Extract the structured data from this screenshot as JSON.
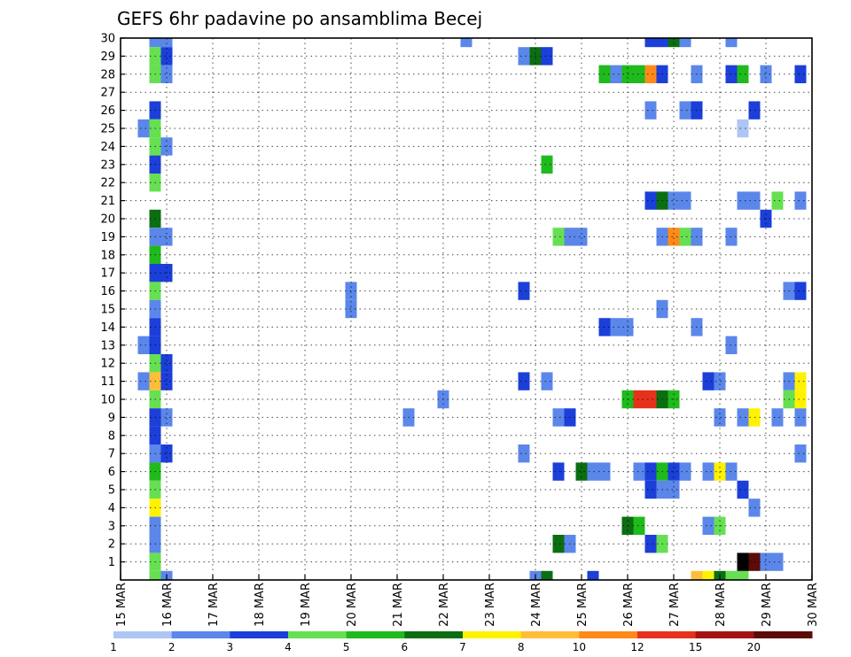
{
  "chart_data": {
    "type": "heatmap",
    "title": "GEFS 6hr padavine po ansamblima Becej",
    "xlabel": "",
    "ylabel": "",
    "x_ticks": [
      "15 MAR",
      "16 MAR",
      "17 MAR",
      "18 MAR",
      "19 MAR",
      "20 MAR",
      "21 MAR",
      "22 MAR",
      "23 MAR",
      "24 MAR",
      "25 MAR",
      "26 MAR",
      "27 MAR",
      "28 MAR",
      "29 MAR",
      "30 MAR"
    ],
    "y_ticks": [
      "1",
      "2",
      "3",
      "4",
      "5",
      "6",
      "7",
      "8",
      "9",
      "10",
      "11",
      "12",
      "13",
      "14",
      "15",
      "16",
      "17",
      "18",
      "19",
      "20",
      "21",
      "22",
      "23",
      "24",
      "25",
      "26",
      "27",
      "28",
      "29",
      "30"
    ],
    "grid": true,
    "colorbar": {
      "levels": [
        "1",
        "2",
        "3",
        "4",
        "5",
        "6",
        "7",
        "8",
        "10",
        "12",
        "15",
        "20"
      ],
      "colors": [
        "#aec6f5",
        "#5b87ea",
        "#1b3fd8",
        "#66e052",
        "#1fba1c",
        "#0b6e12",
        "#fff200",
        "#ffbe3a",
        "#ff8a1a",
        "#e6311d",
        "#a41412",
        "#5c0b08"
      ]
    },
    "cells": [
      {
        "x": "15 MAR 18h",
        "m": 30,
        "c": 1
      },
      {
        "x": "16 MAR 00h",
        "m": 30,
        "c": 1
      },
      {
        "x": "15 MAR 18h",
        "m": 29,
        "c": 3
      },
      {
        "x": "16 MAR 00h",
        "m": 29,
        "c": 2
      },
      {
        "x": "15 MAR 18h",
        "m": 28,
        "c": 3
      },
      {
        "x": "16 MAR 00h",
        "m": 28,
        "c": 1
      },
      {
        "x": "15 MAR 18h",
        "m": 26,
        "c": 2
      },
      {
        "x": "15 MAR 12h",
        "m": 25,
        "c": 1
      },
      {
        "x": "15 MAR 18h",
        "m": 25,
        "c": 3
      },
      {
        "x": "15 MAR 18h",
        "m": 24,
        "c": 3
      },
      {
        "x": "16 MAR 00h",
        "m": 24,
        "c": 1
      },
      {
        "x": "15 MAR 18h",
        "m": 23,
        "c": 2
      },
      {
        "x": "15 MAR 18h",
        "m": 22,
        "c": 3
      },
      {
        "x": "15 MAR 18h",
        "m": 20,
        "c": 5
      },
      {
        "x": "15 MAR 18h",
        "m": 19,
        "c": 1
      },
      {
        "x": "16 MAR 00h",
        "m": 19,
        "c": 1
      },
      {
        "x": "15 MAR 18h",
        "m": 18,
        "c": 4
      },
      {
        "x": "15 MAR 18h",
        "m": 17,
        "c": 2
      },
      {
        "x": "16 MAR 00h",
        "m": 17,
        "c": 2
      },
      {
        "x": "15 MAR 18h",
        "m": 16,
        "c": 3
      },
      {
        "x": "15 MAR 18h",
        "m": 15,
        "c": 1
      },
      {
        "x": "15 MAR 18h",
        "m": 14,
        "c": 2
      },
      {
        "x": "15 MAR 12h",
        "m": 13,
        "c": 1
      },
      {
        "x": "15 MAR 18h",
        "m": 13,
        "c": 2
      },
      {
        "x": "15 MAR 18h",
        "m": 12,
        "c": 3
      },
      {
        "x": "16 MAR 00h",
        "m": 12,
        "c": 2
      },
      {
        "x": "15 MAR 12h",
        "m": 11,
        "c": 1
      },
      {
        "x": "15 MAR 18h",
        "m": 11,
        "c": 7
      },
      {
        "x": "16 MAR 00h",
        "m": 11,
        "c": 2
      },
      {
        "x": "15 MAR 18h",
        "m": 10,
        "c": 3
      },
      {
        "x": "15 MAR 18h",
        "m": 9,
        "c": 2
      },
      {
        "x": "16 MAR 00h",
        "m": 9,
        "c": 1
      },
      {
        "x": "15 MAR 18h",
        "m": 8,
        "c": 2
      },
      {
        "x": "15 MAR 18h",
        "m": 7,
        "c": 1
      },
      {
        "x": "16 MAR 00h",
        "m": 7,
        "c": 2
      },
      {
        "x": "15 MAR 18h",
        "m": 6,
        "c": 4
      },
      {
        "x": "15 MAR 18h",
        "m": 5,
        "c": 3
      },
      {
        "x": "15 MAR 18h",
        "m": 4,
        "c": 6
      },
      {
        "x": "15 MAR 18h",
        "m": 3,
        "c": 1
      },
      {
        "x": "15 MAR 18h",
        "m": 2,
        "c": 1
      },
      {
        "x": "15 MAR 18h",
        "m": 1,
        "c": 3
      },
      {
        "x": "15 MAR 18h",
        "m": 0,
        "c": 3
      },
      {
        "x": "16 MAR 00h",
        "m": 0,
        "c": 1
      },
      {
        "x": "20 MAR 00h",
        "m": 16,
        "c": 1
      },
      {
        "x": "20 MAR 00h",
        "m": 15,
        "c": 1
      },
      {
        "x": "21 MAR 06h",
        "m": 9,
        "c": 1
      },
      {
        "x": "22 MAR 00h",
        "m": 10,
        "c": 1
      },
      {
        "x": "22 MAR 12h",
        "m": 30,
        "c": 1
      },
      {
        "x": "23 MAR 18h",
        "m": 29,
        "c": 1
      },
      {
        "x": "24 MAR 00h",
        "m": 29,
        "c": 5
      },
      {
        "x": "24 MAR 06h",
        "m": 29,
        "c": 2
      },
      {
        "x": "23 MAR 18h",
        "m": 16,
        "c": 2
      },
      {
        "x": "23 MAR 18h",
        "m": 11,
        "c": 2
      },
      {
        "x": "23 MAR 18h",
        "m": 7,
        "c": 1
      },
      {
        "x": "24 MAR 00h",
        "m": 0,
        "c": 1
      },
      {
        "x": "24 MAR 06h",
        "m": 0,
        "c": 5
      },
      {
        "x": "24 MAR 06h",
        "m": 23,
        "c": 4
      },
      {
        "x": "24 MAR 06h",
        "m": 11,
        "c": 1
      },
      {
        "x": "24 MAR 12h",
        "m": 19,
        "c": 3
      },
      {
        "x": "24 MAR 18h",
        "m": 19,
        "c": 1
      },
      {
        "x": "25 MAR 00h",
        "m": 19,
        "c": 1
      },
      {
        "x": "24 MAR 12h",
        "m": 9,
        "c": 1
      },
      {
        "x": "24 MAR 18h",
        "m": 9,
        "c": 2
      },
      {
        "x": "24 MAR 12h",
        "m": 6,
        "c": 2
      },
      {
        "x": "24 MAR 12h",
        "m": 2,
        "c": 5
      },
      {
        "x": "24 MAR 18h",
        "m": 2,
        "c": 1
      },
      {
        "x": "25 MAR 00h",
        "m": 6,
        "c": 5
      },
      {
        "x": "25 MAR 06h",
        "m": 6,
        "c": 1
      },
      {
        "x": "25 MAR 12h",
        "m": 6,
        "c": 1
      },
      {
        "x": "25 MAR 06h",
        "m": 0,
        "c": 2
      },
      {
        "x": "25 MAR 12h",
        "m": 28,
        "c": 4
      },
      {
        "x": "25 MAR 18h",
        "m": 28,
        "c": 1
      },
      {
        "x": "26 MAR 00h",
        "m": 28,
        "c": 4
      },
      {
        "x": "26 MAR 06h",
        "m": 28,
        "c": 4
      },
      {
        "x": "26 MAR 12h",
        "m": 28,
        "c": 8
      },
      {
        "x": "26 MAR 18h",
        "m": 28,
        "c": 2
      },
      {
        "x": "25 MAR 12h",
        "m": 14,
        "c": 2
      },
      {
        "x": "25 MAR 18h",
        "m": 14,
        "c": 1
      },
      {
        "x": "26 MAR 00h",
        "m": 14,
        "c": 1
      },
      {
        "x": "26 MAR 00h",
        "m": 10,
        "c": 4
      },
      {
        "x": "26 MAR 06h",
        "m": 10,
        "c": 9
      },
      {
        "x": "26 MAR 12h",
        "m": 10,
        "c": 9
      },
      {
        "x": "26 MAR 18h",
        "m": 10,
        "c": 5
      },
      {
        "x": "27 MAR 00h",
        "m": 10,
        "c": 4
      },
      {
        "x": "26 MAR 00h",
        "m": 3,
        "c": 5
      },
      {
        "x": "26 MAR 06h",
        "m": 3,
        "c": 4
      },
      {
        "x": "26 MAR 06h",
        "m": 6,
        "c": 1
      },
      {
        "x": "26 MAR 12h",
        "m": 6,
        "c": 2
      },
      {
        "x": "26 MAR 18h",
        "m": 6,
        "c": 4
      },
      {
        "x": "27 MAR 00h",
        "m": 6,
        "c": 2
      },
      {
        "x": "27 MAR 06h",
        "m": 6,
        "c": 1
      },
      {
        "x": "26 MAR 12h",
        "m": 30,
        "c": 2
      },
      {
        "x": "26 MAR 18h",
        "m": 30,
        "c": 2
      },
      {
        "x": "27 MAR 00h",
        "m": 30,
        "c": 5
      },
      {
        "x": "27 MAR 06h",
        "m": 30,
        "c": 1
      },
      {
        "x": "26 MAR 12h",
        "m": 26,
        "c": 1
      },
      {
        "x": "26 MAR 12h",
        "m": 21,
        "c": 2
      },
      {
        "x": "26 MAR 18h",
        "m": 21,
        "c": 5
      },
      {
        "x": "27 MAR 00h",
        "m": 21,
        "c": 1
      },
      {
        "x": "27 MAR 06h",
        "m": 21,
        "c": 1
      },
      {
        "x": "26 MAR 18h",
        "m": 19,
        "c": 1
      },
      {
        "x": "27 MAR 00h",
        "m": 19,
        "c": 8
      },
      {
        "x": "27 MAR 06h",
        "m": 19,
        "c": 3
      },
      {
        "x": "27 MAR 12h",
        "m": 19,
        "c": 1
      },
      {
        "x": "26 MAR 18h",
        "m": 15,
        "c": 1
      },
      {
        "x": "26 MAR 12h",
        "m": 5,
        "c": 2
      },
      {
        "x": "26 MAR 18h",
        "m": 5,
        "c": 1
      },
      {
        "x": "27 MAR 00h",
        "m": 5,
        "c": 1
      },
      {
        "x": "26 MAR 12h",
        "m": 2,
        "c": 2
      },
      {
        "x": "26 MAR 18h",
        "m": 2,
        "c": 3
      },
      {
        "x": "27 MAR 06h",
        "m": 26,
        "c": 1
      },
      {
        "x": "27 MAR 12h",
        "m": 26,
        "c": 2
      },
      {
        "x": "27 MAR 12h",
        "m": 28,
        "c": 1
      },
      {
        "x": "27 MAR 12h",
        "m": 14,
        "c": 1
      },
      {
        "x": "27 MAR 12h",
        "m": 0,
        "c": 7
      },
      {
        "x": "27 MAR 18h",
        "m": 0,
        "c": 6
      },
      {
        "x": "28 MAR 00h",
        "m": 0,
        "c": 5
      },
      {
        "x": "28 MAR 06h",
        "m": 0,
        "c": 3
      },
      {
        "x": "28 MAR 12h",
        "m": 0,
        "c": 3
      },
      {
        "x": "27 MAR 18h",
        "m": 11,
        "c": 2
      },
      {
        "x": "28 MAR 00h",
        "m": 11,
        "c": 1
      },
      {
        "x": "27 MAR 18h",
        "m": 6,
        "c": 1
      },
      {
        "x": "28 MAR 00h",
        "m": 6,
        "c": 6
      },
      {
        "x": "28 MAR 06h",
        "m": 6,
        "c": 1
      },
      {
        "x": "27 MAR 18h",
        "m": 3,
        "c": 1
      },
      {
        "x": "28 MAR 00h",
        "m": 3,
        "c": 3
      },
      {
        "x": "28 MAR 00h",
        "m": 9,
        "c": 1
      },
      {
        "x": "28 MAR 06h",
        "m": 28,
        "c": 2
      },
      {
        "x": "28 MAR 12h",
        "m": 28,
        "c": 4
      },
      {
        "x": "28 MAR 06h",
        "m": 30,
        "c": 1
      },
      {
        "x": "28 MAR 06h",
        "m": 19,
        "c": 1
      },
      {
        "x": "28 MAR 06h",
        "m": 13,
        "c": 1
      },
      {
        "x": "28 MAR 12h",
        "m": 25,
        "c": 0
      },
      {
        "x": "28 MAR 12h",
        "m": 1,
        "c": 12
      },
      {
        "x": "28 MAR 18h",
        "m": 1,
        "c": 11
      },
      {
        "x": "29 MAR 00h",
        "m": 1,
        "c": 1
      },
      {
        "x": "29 MAR 06h",
        "m": 1,
        "c": 1
      },
      {
        "x": "28 MAR 12h",
        "m": 9,
        "c": 1
      },
      {
        "x": "28 MAR 18h",
        "m": 9,
        "c": 6
      },
      {
        "x": "28 MAR 12h",
        "m": 5,
        "c": 2
      },
      {
        "x": "28 MAR 18h",
        "m": 26,
        "c": 2
      },
      {
        "x": "28 MAR 18h",
        "m": 4,
        "c": 1
      },
      {
        "x": "28 MAR 18h",
        "m": 21,
        "c": 1
      },
      {
        "x": "28 MAR 12h",
        "m": 21,
        "c": 1
      },
      {
        "x": "29 MAR 00h",
        "m": 28,
        "c": 1
      },
      {
        "x": "29 MAR 00h",
        "m": 20,
        "c": 2
      },
      {
        "x": "29 MAR 06h",
        "m": 21,
        "c": 3
      },
      {
        "x": "29 MAR 06h",
        "m": 9,
        "c": 1
      },
      {
        "x": "29 MAR 12h",
        "m": 16,
        "c": 1
      },
      {
        "x": "29 MAR 12h",
        "m": 11,
        "c": 1
      },
      {
        "x": "29 MAR 12h",
        "m": 10,
        "c": 3
      },
      {
        "x": "29 MAR 18h",
        "m": 28,
        "c": 2
      },
      {
        "x": "29 MAR 18h",
        "m": 21,
        "c": 1
      },
      {
        "x": "29 MAR 18h",
        "m": 16,
        "c": 2
      },
      {
        "x": "29 MAR 18h",
        "m": 11,
        "c": 6
      },
      {
        "x": "29 MAR 18h",
        "m": 10,
        "c": 6
      },
      {
        "x": "29 MAR 18h",
        "m": 9,
        "c": 1
      },
      {
        "x": "29 MAR 18h",
        "m": 7,
        "c": 1
      }
    ]
  }
}
